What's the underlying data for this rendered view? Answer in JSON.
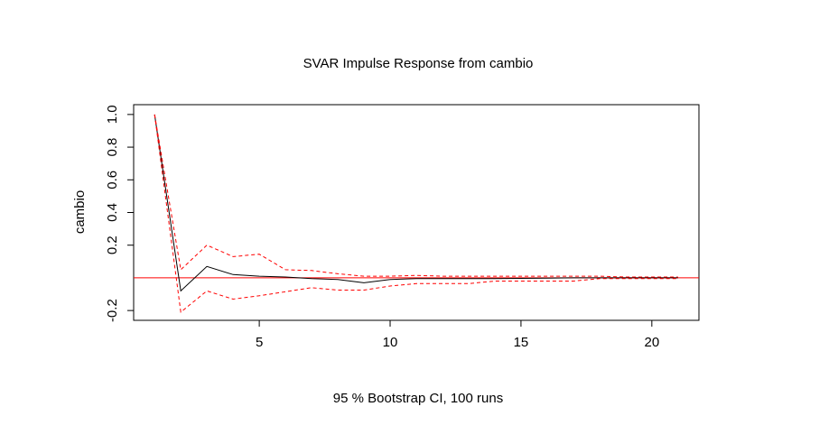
{
  "chart_data": {
    "type": "line",
    "title": "SVAR Impulse Response from cambio",
    "xlabel": "95 % Bootstrap CI,  100 runs",
    "ylabel": "cambio",
    "xlim": [
      0.2,
      21.8
    ],
    "ylim": [
      -0.26,
      1.06
    ],
    "x_ticks": [
      5,
      10,
      15,
      20
    ],
    "y_ticks": [
      -0.2,
      0.2,
      0.4,
      0.6,
      0.8,
      1.0
    ],
    "y_tick_labels": [
      "-0.2",
      "0.2",
      "0.4",
      "0.6",
      "0.8",
      "1.0"
    ],
    "x": [
      1,
      2,
      3,
      4,
      5,
      6,
      7,
      8,
      9,
      10,
      11,
      12,
      13,
      14,
      15,
      16,
      17,
      18,
      19,
      20,
      21
    ],
    "reference_line": {
      "y": 0,
      "color": "#ff0000"
    },
    "grid": false,
    "series": [
      {
        "role": "response",
        "style": "solid",
        "color": "#000000",
        "values": [
          1.0,
          -0.08,
          0.07,
          0.02,
          0.01,
          0.005,
          -0.005,
          -0.01,
          -0.03,
          -0.01,
          -0.005,
          -0.005,
          -0.005,
          -0.005,
          -0.003,
          -0.002,
          0.0,
          0.0,
          0.0,
          0.0,
          0.0
        ]
      },
      {
        "role": "upper",
        "style": "dashed",
        "color": "#ff0000",
        "values": [
          1.0,
          0.05,
          0.2,
          0.13,
          0.145,
          0.05,
          0.045,
          0.025,
          0.01,
          0.01,
          0.015,
          0.01,
          0.01,
          0.01,
          0.01,
          0.01,
          0.01,
          0.01,
          0.005,
          0.005,
          0.005
        ]
      },
      {
        "role": "lower",
        "style": "dashed",
        "color": "#ff0000",
        "values": [
          1.0,
          -0.21,
          -0.08,
          -0.13,
          -0.11,
          -0.085,
          -0.06,
          -0.075,
          -0.075,
          -0.05,
          -0.035,
          -0.035,
          -0.035,
          -0.02,
          -0.02,
          -0.02,
          -0.02,
          -0.005,
          -0.005,
          -0.005,
          -0.005
        ]
      }
    ]
  }
}
